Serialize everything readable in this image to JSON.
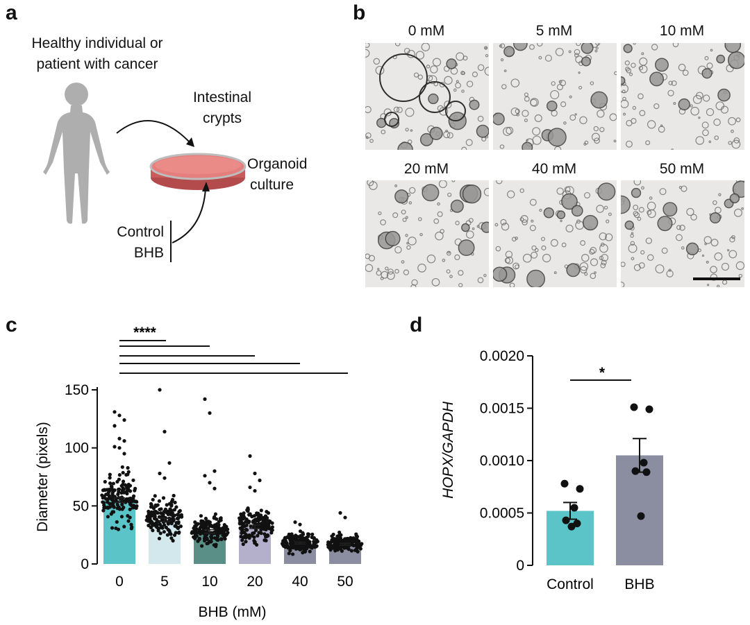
{
  "panel_labels": {
    "a": "a",
    "b": "b",
    "c": "c",
    "d": "d"
  },
  "panel_a": {
    "source_line1": "Healthy individual or",
    "source_line2": "patient with cancer",
    "crypts_line1": "Intestinal",
    "crypts_line2": "crypts",
    "culture_line1": "Organoid",
    "culture_line2": "culture",
    "treat_1": "Control",
    "treat_2": "BHB"
  },
  "panel_b": {
    "images": [
      {
        "label": "0 mM"
      },
      {
        "label": "5 mM"
      },
      {
        "label": "10 mM"
      },
      {
        "label": "20 mM"
      },
      {
        "label": "40 mM"
      },
      {
        "label": "50 mM"
      }
    ]
  },
  "chart_data": [
    {
      "panel": "c",
      "type": "bar",
      "categories": [
        "0",
        "5",
        "10",
        "20",
        "40",
        "50"
      ],
      "values": [
        55,
        38,
        28,
        32,
        18,
        17
      ],
      "errors": [
        2,
        1.5,
        1.5,
        1.5,
        0.8,
        0.8
      ],
      "bar_colors": [
        "#5bc4c8",
        "#d3e8ec",
        "#5a8f87",
        "#b4b0cc",
        "#8a8ea0",
        "#8a8ea0"
      ],
      "xlabel": "BHB (mM)",
      "ylabel": "Diameter (pixels)",
      "ylim": [
        0,
        150
      ],
      "yticks": [
        "0",
        "50",
        "100",
        "150"
      ],
      "significance_label": "****",
      "outliers": [
        {
          "category": "0",
          "values": [
            131,
            128,
            124,
            119,
            108,
            106,
            101,
            100,
            95
          ]
        },
        {
          "category": "5",
          "values": [
            150,
            114,
            87,
            78,
            74
          ]
        },
        {
          "category": "10",
          "values": [
            142,
            130,
            80,
            76,
            70,
            65
          ]
        },
        {
          "category": "20",
          "values": [
            93,
            78,
            72,
            66,
            63
          ]
        },
        {
          "category": "40",
          "values": [
            36,
            34
          ]
        },
        {
          "category": "50",
          "values": [
            44,
            40
          ]
        }
      ]
    },
    {
      "panel": "d",
      "type": "bar",
      "categories": [
        "Control",
        "BHB"
      ],
      "values": [
        0.00052,
        0.00105
      ],
      "errors": [
        8e-05,
        0.00016
      ],
      "bar_colors": [
        "#5bc4c8",
        "#8a8ea0"
      ],
      "ylabel": "HOPX/GAPDH",
      "ylim": [
        0,
        0.002
      ],
      "yticks": [
        "0",
        "0.0005",
        "0.0010",
        "0.0015",
        "0.0020"
      ],
      "significance_label": "*",
      "points": [
        {
          "category": "Control",
          "values": [
            0.00078,
            0.00073,
            0.00055,
            0.00043,
            0.0004,
            0.00037
          ]
        },
        {
          "category": "BHB",
          "values": [
            0.00151,
            0.00149,
            0.00098,
            0.0009,
            0.00089,
            0.00047
          ]
        }
      ]
    }
  ]
}
